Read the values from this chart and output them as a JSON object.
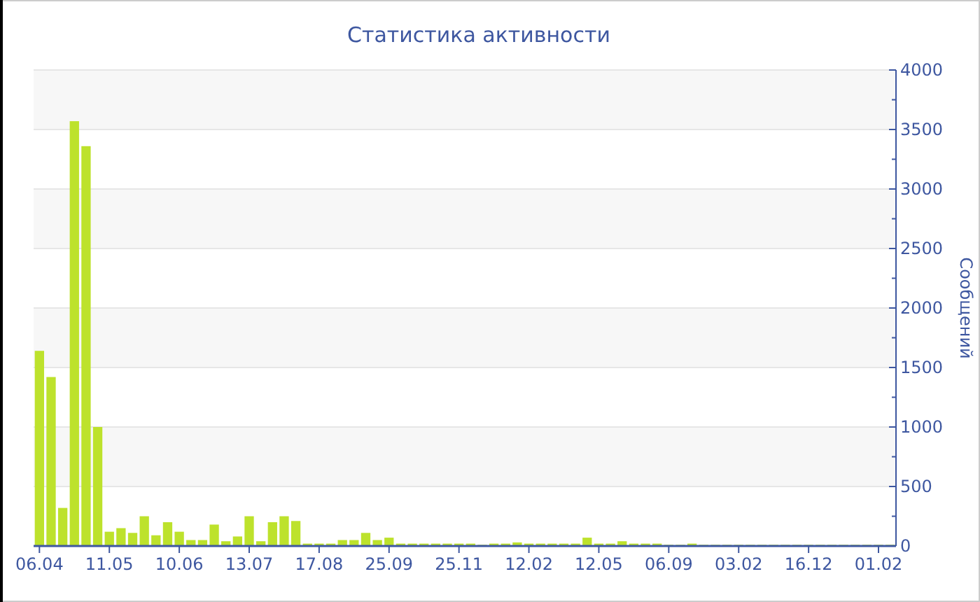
{
  "chart_data": {
    "type": "bar",
    "title": "Статистика активности",
    "ylabel": "Сообщений",
    "color": "#bde22c",
    "categories": [
      "06.04",
      null,
      null,
      null,
      null,
      null,
      "11.05",
      null,
      null,
      null,
      null,
      null,
      "10.06",
      null,
      null,
      null,
      null,
      null,
      "13.07",
      null,
      null,
      null,
      null,
      null,
      "17.08",
      null,
      null,
      null,
      null,
      null,
      "25.09",
      null,
      null,
      null,
      null,
      null,
      "25.11",
      null,
      null,
      null,
      null,
      null,
      "12.02",
      null,
      null,
      null,
      null,
      null,
      "12.05",
      null,
      null,
      null,
      null,
      null,
      "06.09",
      null,
      null,
      null,
      null,
      null,
      "03.02",
      null,
      null,
      null,
      null,
      null,
      "16.12",
      null,
      null,
      null,
      null,
      null,
      "01.02",
      null
    ],
    "values": [
      1640,
      1420,
      320,
      3570,
      3360,
      1000,
      120,
      150,
      110,
      250,
      90,
      200,
      120,
      50,
      50,
      180,
      40,
      80,
      250,
      40,
      200,
      250,
      210,
      20,
      20,
      20,
      50,
      50,
      110,
      50,
      70,
      20,
      20,
      20,
      20,
      20,
      20,
      20,
      10,
      20,
      20,
      30,
      20,
      20,
      20,
      20,
      20,
      70,
      20,
      20,
      40,
      20,
      20,
      20,
      10,
      10,
      20,
      10,
      10,
      10,
      10,
      10,
      10,
      10,
      10,
      10,
      10,
      10,
      10,
      10,
      10,
      10,
      10,
      10
    ],
    "ylim": [
      0,
      4000
    ],
    "yticks": [
      0,
      {
        "value": 250,
        "label": null
      },
      500,
      {
        "value": 750,
        "label": null
      },
      1000,
      {
        "value": 1250,
        "label": null
      },
      1500,
      {
        "value": 1750,
        "label": null
      },
      2000,
      {
        "value": 2250,
        "label": null
      },
      2500,
      {
        "value": 2750,
        "label": null
      },
      3000,
      {
        "value": 3250,
        "label": null
      },
      3500,
      {
        "value": 3750,
        "label": null
      },
      4000
    ],
    "grid": "y"
  }
}
